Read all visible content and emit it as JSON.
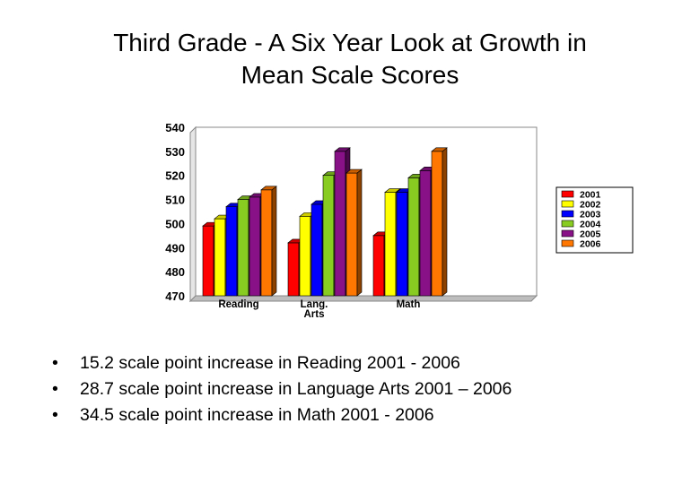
{
  "title": {
    "line1": "Third Grade  - A Six Year Look at Growth in",
    "line2": "Mean Scale Scores"
  },
  "chart_data": {
    "type": "bar",
    "style": "3d-clustered-column",
    "categories": [
      "Reading",
      "Lang.\nArts",
      "Math"
    ],
    "series": [
      {
        "name": "2001",
        "color": "#ff0000",
        "values": [
          499,
          492,
          495
        ]
      },
      {
        "name": "2002",
        "color": "#ffff00",
        "values": [
          502,
          503,
          513
        ]
      },
      {
        "name": "2003",
        "color": "#0000ff",
        "values": [
          507,
          508,
          513
        ]
      },
      {
        "name": "2004",
        "color": "#88cc22",
        "values": [
          510,
          520,
          519
        ]
      },
      {
        "name": "2005",
        "color": "#881188",
        "values": [
          511,
          530,
          522
        ]
      },
      {
        "name": "2006",
        "color": "#ff7700",
        "values": [
          514,
          521,
          530
        ]
      }
    ],
    "yticks": [
      470,
      480,
      490,
      500,
      510,
      520,
      530,
      540
    ],
    "ylim": [
      470,
      540
    ],
    "grid": false,
    "legend": "right"
  },
  "bullets": [
    "15.2 scale point increase in Reading 2001 - 2006",
    "28.7 scale point increase in Language Arts 2001 – 2006",
    "34.5 scale point increase in Math 2001 - 2006"
  ]
}
